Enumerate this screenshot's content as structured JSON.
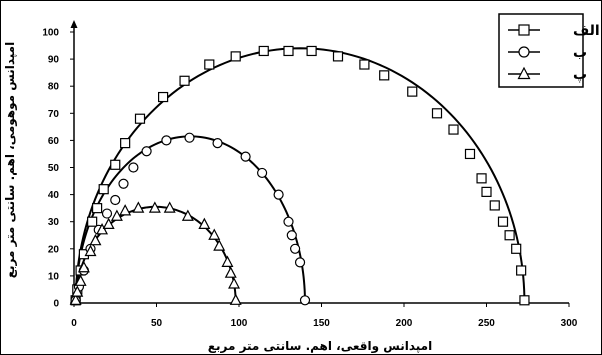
{
  "chart_data": {
    "type": "scatter",
    "title": "",
    "xlabel": "امپدانس واقعی، اهم. سانتی متر مربع",
    "ylabel": "امپدانس موهومی، اهم. سانتی متر مربع",
    "xlim": [
      0,
      300
    ],
    "ylim": [
      0,
      100
    ],
    "xticks": [
      0,
      50,
      100,
      150,
      200,
      250,
      300
    ],
    "yticks": [
      0,
      10,
      20,
      30,
      40,
      50,
      60,
      70,
      80,
      90,
      100
    ],
    "grid": false,
    "legend_position": "top-right",
    "series": [
      {
        "name": "الف",
        "marker": "square",
        "color": "#000000",
        "points": [
          [
            1,
            1
          ],
          [
            2,
            5
          ],
          [
            4,
            12
          ],
          [
            6,
            18
          ],
          [
            11,
            30
          ],
          [
            14,
            35
          ],
          [
            18,
            42
          ],
          [
            25,
            51
          ],
          [
            31,
            59
          ],
          [
            40,
            68
          ],
          [
            54,
            76
          ],
          [
            67,
            82
          ],
          [
            82,
            88
          ],
          [
            98,
            91
          ],
          [
            115,
            93
          ],
          [
            130,
            93
          ],
          [
            144,
            93
          ],
          [
            160,
            91
          ],
          [
            176,
            88
          ],
          [
            188,
            84
          ],
          [
            205,
            78
          ],
          [
            220,
            70
          ],
          [
            230,
            64
          ],
          [
            240,
            55
          ],
          [
            247,
            46
          ],
          [
            250,
            41
          ],
          [
            255,
            36
          ],
          [
            260,
            30
          ],
          [
            264,
            25
          ],
          [
            268,
            20
          ],
          [
            271,
            12
          ],
          [
            273,
            1
          ]
        ],
        "fit": {
          "center": 137,
          "radius": 136,
          "peak": 94
        }
      },
      {
        "name": "ب",
        "marker": "circle",
        "color": "#000000",
        "points": [
          [
            1,
            1
          ],
          [
            3,
            6
          ],
          [
            6,
            12
          ],
          [
            10,
            20
          ],
          [
            15,
            27
          ],
          [
            20,
            33
          ],
          [
            25,
            38
          ],
          [
            30,
            44
          ],
          [
            36,
            50
          ],
          [
            44,
            56
          ],
          [
            56,
            60
          ],
          [
            70,
            61
          ],
          [
            87,
            59
          ],
          [
            104,
            54
          ],
          [
            114,
            48
          ],
          [
            124,
            40
          ],
          [
            130,
            30
          ],
          [
            132,
            25
          ],
          [
            134,
            20
          ],
          [
            137,
            15
          ],
          [
            140,
            1
          ]
        ],
        "fit": {
          "center": 70.5,
          "radius": 69.5,
          "peak": 61.5
        }
      },
      {
        "name": "پ",
        "marker": "triangle",
        "color": "#000000",
        "points": [
          [
            1,
            1
          ],
          [
            2,
            4
          ],
          [
            4,
            8
          ],
          [
            6,
            13
          ],
          [
            10,
            19
          ],
          [
            13,
            23
          ],
          [
            17,
            27
          ],
          [
            21,
            29
          ],
          [
            26,
            32
          ],
          [
            31,
            34
          ],
          [
            39,
            35
          ],
          [
            49,
            35
          ],
          [
            58,
            35
          ],
          [
            69,
            32
          ],
          [
            79,
            29
          ],
          [
            85,
            25
          ],
          [
            88,
            21
          ],
          [
            93,
            15
          ],
          [
            95,
            11
          ],
          [
            97,
            7
          ],
          [
            98,
            1
          ]
        ],
        "fit": {
          "center": 49.5,
          "radius": 48.5,
          "peak": 35.5
        }
      }
    ]
  }
}
